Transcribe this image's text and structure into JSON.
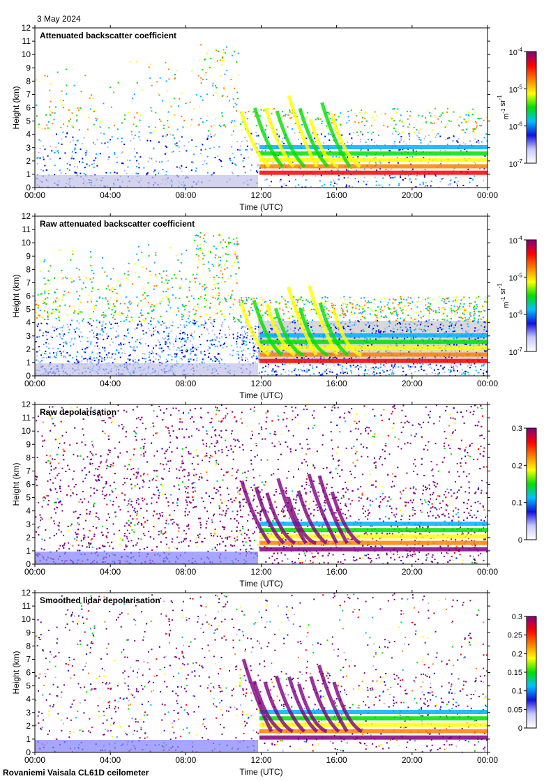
{
  "date_label": "3 May 2024",
  "footer_label": "Rovaniemi Vaisala CL61D ceilometer",
  "chart_data": [
    {
      "type": "heatmap",
      "title": "Attenuated backscatter coefficient",
      "xlabel": "Time (UTC)",
      "ylabel": "Height (km)",
      "xticks": [
        "00:00",
        "04:00",
        "08:00",
        "12:00",
        "16:00",
        "20:00",
        "00:00"
      ],
      "yticks": [
        0,
        1,
        2,
        3,
        4,
        5,
        6,
        7,
        8,
        9,
        10,
        11,
        12
      ],
      "xlim": [
        0,
        24
      ],
      "ylim": [
        0,
        12
      ],
      "colorbar": {
        "scale": "log",
        "ticks": [
          {
            "base": "10",
            "exp": "-4"
          },
          {
            "base": "10",
            "exp": "-5"
          },
          {
            "base": "10",
            "exp": "-6"
          },
          {
            "base": "10",
            "exp": "-7"
          }
        ],
        "unit_base": [
          "m",
          "sr"
        ],
        "unit_exp": [
          "-1",
          "-1"
        ]
      }
    },
    {
      "type": "heatmap",
      "title": "Raw attenuated backscatter coefficient",
      "xlabel": "Time (UTC)",
      "ylabel": "Height (km)",
      "xticks": [
        "00:00",
        "04:00",
        "08:00",
        "12:00",
        "16:00",
        "20:00",
        "00:00"
      ],
      "yticks": [
        0,
        1,
        2,
        3,
        4,
        5,
        6,
        7,
        8,
        9,
        10,
        11,
        12
      ],
      "xlim": [
        0,
        24
      ],
      "ylim": [
        0,
        12
      ],
      "colorbar": {
        "scale": "log",
        "ticks": [
          {
            "base": "10",
            "exp": "-4"
          },
          {
            "base": "10",
            "exp": "-5"
          },
          {
            "base": "10",
            "exp": "-6"
          },
          {
            "base": "10",
            "exp": "-7"
          }
        ],
        "unit_base": [
          "m",
          "sr"
        ],
        "unit_exp": [
          "-1",
          "-1"
        ]
      }
    },
    {
      "type": "heatmap",
      "title": "Raw depolarisation",
      "xlabel": "Time (UTC)",
      "ylabel": "Height (km)",
      "xticks": [
        "00:00",
        "04:00",
        "08:00",
        "12:00",
        "16:00",
        "20:00",
        "00:00"
      ],
      "yticks": [
        0,
        1,
        2,
        3,
        4,
        5,
        6,
        7,
        8,
        9,
        10,
        11,
        12
      ],
      "xlim": [
        0,
        24
      ],
      "ylim": [
        0,
        12
      ],
      "colorbar": {
        "scale": "linear",
        "ticks": [
          "0.3",
          "0.2",
          "0.1",
          "0"
        ],
        "range": [
          0,
          0.3
        ]
      }
    },
    {
      "type": "heatmap",
      "title": "Smoothed lidar depolarisation",
      "xlabel": "Time (UTC)",
      "ylabel": "Height (km)",
      "xticks": [
        "00:00",
        "04:00",
        "08:00",
        "12:00",
        "16:00",
        "20:00",
        "00:00"
      ],
      "yticks": [
        0,
        1,
        2,
        3,
        4,
        5,
        6,
        7,
        8,
        9,
        10,
        11,
        12
      ],
      "xlim": [
        0,
        24
      ],
      "ylim": [
        0,
        12
      ],
      "colorbar": {
        "scale": "linear",
        "ticks": [
          "0.3",
          "0.25",
          "0.2",
          "0.15",
          "0.1",
          "0.05",
          "0"
        ],
        "range": [
          0,
          0.3
        ]
      }
    }
  ],
  "colorscale": [
    "#ffffff",
    "#b0b0ff",
    "#0000e0",
    "#00b0ff",
    "#00e000",
    "#ffff00",
    "#ff8000",
    "#ff0000",
    "#800080"
  ]
}
